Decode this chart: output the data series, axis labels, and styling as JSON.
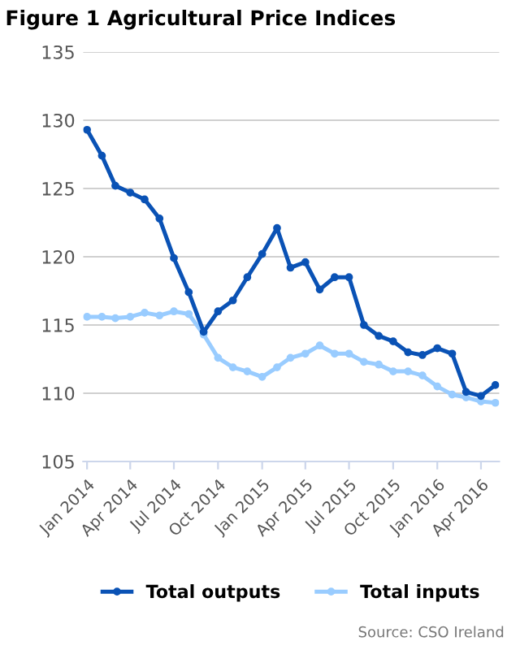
{
  "chart_data": {
    "type": "line",
    "title": "Figure 1 Agricultural Price Indices",
    "x": [
      "2014-01",
      "2014-02",
      "2014-03",
      "2014-04",
      "2014-05",
      "2014-06",
      "2014-07",
      "2014-08",
      "2014-09",
      "2014-10",
      "2014-11",
      "2014-12",
      "2015-01",
      "2015-02",
      "2015-03",
      "2015-04",
      "2015-05",
      "2015-06",
      "2015-07",
      "2015-08",
      "2015-09",
      "2015-10",
      "2015-11",
      "2015-12",
      "2016-01",
      "2016-02",
      "2016-03",
      "2016-04",
      "2016-05"
    ],
    "series": [
      {
        "name": "Total outputs",
        "color": "#0a52b5",
        "marker": "circle",
        "values": [
          129.3,
          127.4,
          125.2,
          124.7,
          124.2,
          122.8,
          119.9,
          117.4,
          114.5,
          116.0,
          116.8,
          118.5,
          120.2,
          122.1,
          119.2,
          119.6,
          117.6,
          118.5,
          118.5,
          115.0,
          114.2,
          113.8,
          113.0,
          112.8,
          113.3,
          112.9,
          110.1,
          109.8,
          110.6
        ]
      },
      {
        "name": "Total inputs",
        "color": "#99ccff",
        "marker": "circle",
        "values": [
          115.6,
          115.6,
          115.5,
          115.6,
          115.9,
          115.7,
          116.0,
          115.8,
          114.3,
          112.6,
          111.9,
          111.6,
          111.2,
          111.9,
          112.6,
          112.9,
          113.5,
          112.9,
          112.9,
          112.3,
          112.1,
          111.6,
          111.6,
          111.3,
          110.5,
          109.9,
          109.7,
          109.4,
          109.3
        ]
      }
    ],
    "ylim": [
      105,
      135
    ],
    "yticks": [
      105,
      110,
      115,
      120,
      125,
      130,
      135
    ],
    "xlim": [
      "2014-01",
      "2016-05"
    ],
    "xticks": [
      {
        "value": "2014-01",
        "label": "Jan 2014"
      },
      {
        "value": "2014-04",
        "label": "Apr 2014"
      },
      {
        "value": "2014-07",
        "label": "Jul 2014"
      },
      {
        "value": "2014-10",
        "label": "Oct 2014"
      },
      {
        "value": "2015-01",
        "label": "Jan 2015"
      },
      {
        "value": "2015-04",
        "label": "Apr 2015"
      },
      {
        "value": "2015-07",
        "label": "Jul 2015"
      },
      {
        "value": "2015-10",
        "label": "Oct 2015"
      },
      {
        "value": "2016-01",
        "label": "Jan 2016"
      },
      {
        "value": "2016-04",
        "label": "Apr 2016"
      }
    ],
    "grid": "y",
    "legend": "bottom",
    "line_style": "solid",
    "annotations": [
      "Source: CSO Ireland"
    ]
  }
}
